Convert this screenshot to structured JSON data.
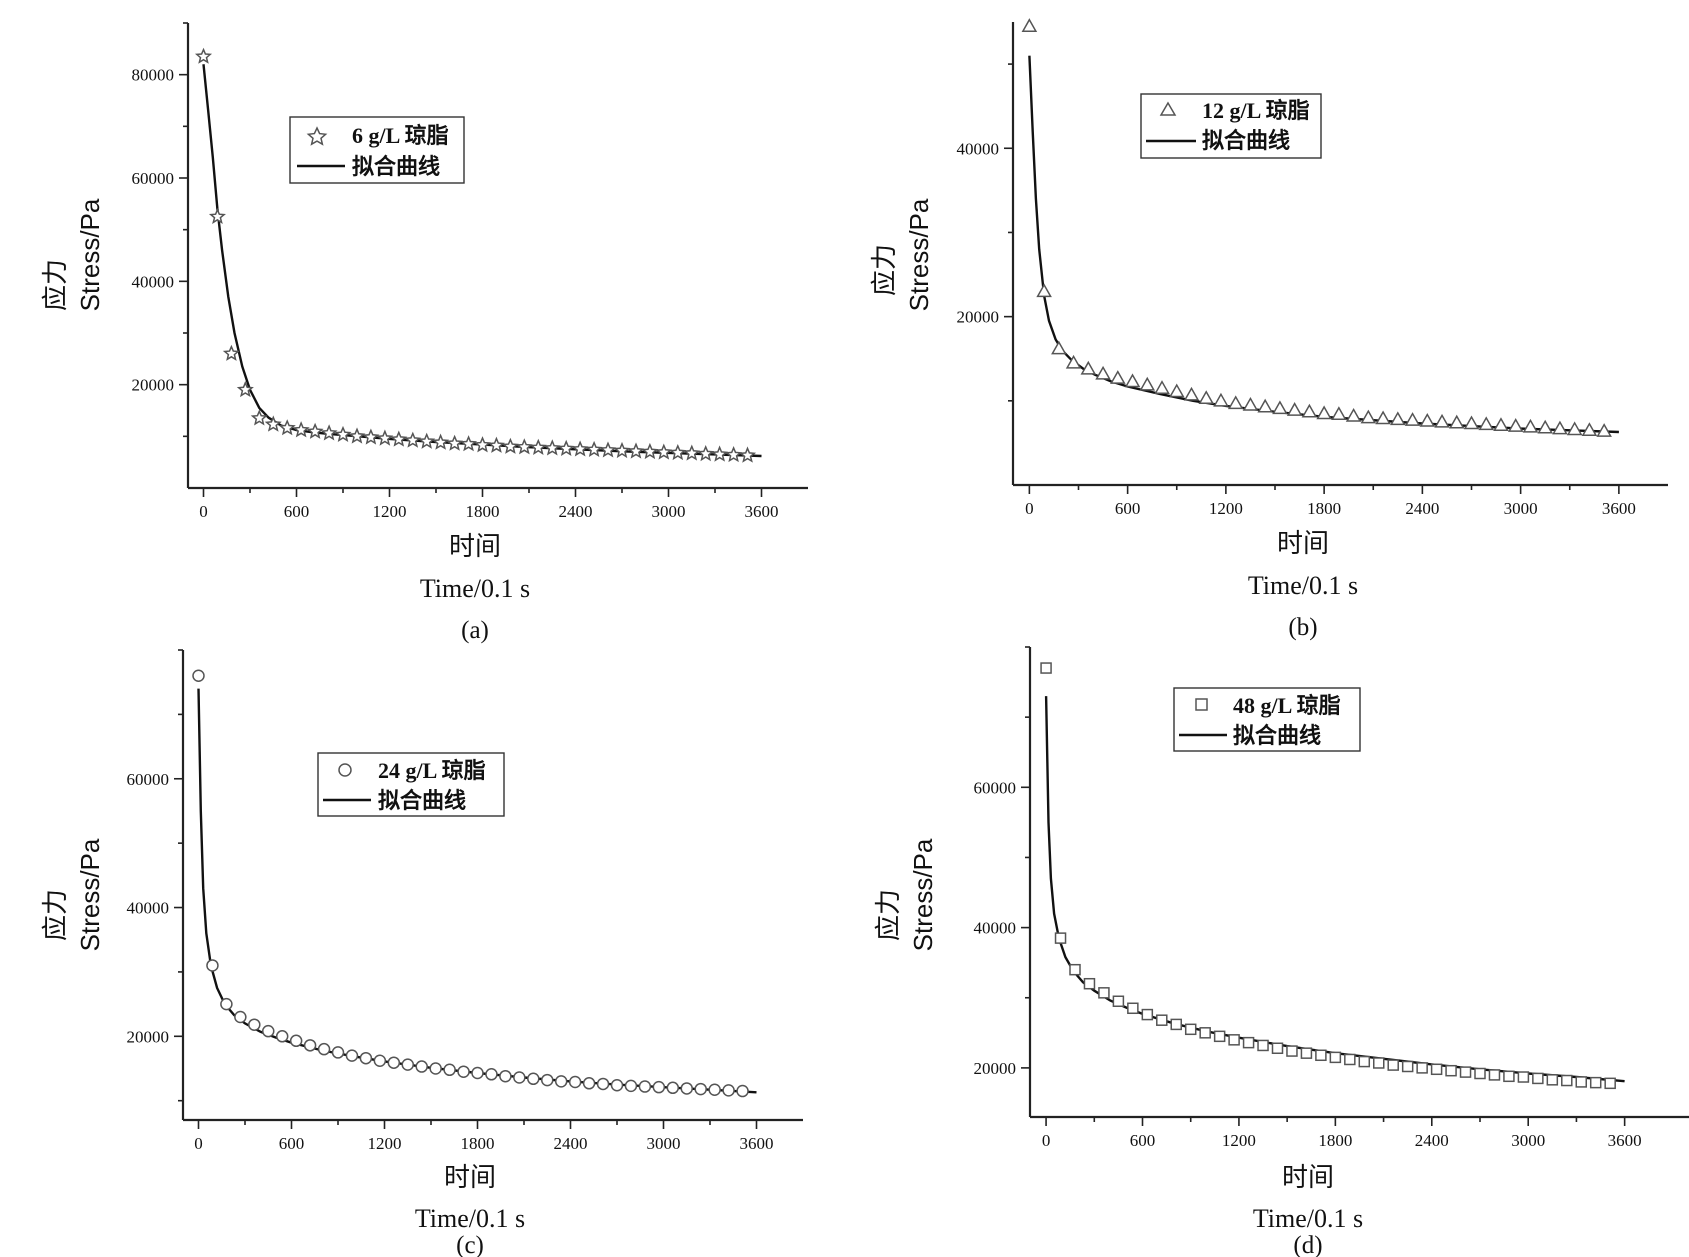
{
  "chart_data": [
    {
      "type": "scatter",
      "panel_label": "(a)",
      "xlabel_cn": "时间",
      "xlabel": "Time/0.1 s",
      "ylabel_cn": "应力",
      "ylabel": "Stress/Pa",
      "xlim": [
        -100,
        3900
      ],
      "ylim": [
        0,
        90000
      ],
      "xticks": [
        0,
        600,
        1200,
        1800,
        2400,
        3000,
        3600
      ],
      "yticks": [
        20000,
        40000,
        60000,
        80000
      ],
      "marker": "star",
      "series": [
        {
          "name": "6 g/L 琼脂",
          "kind": "markers",
          "x": [
            0,
            90,
            180,
            270,
            360,
            450,
            540,
            630,
            720,
            810,
            900,
            990,
            1080,
            1170,
            1260,
            1350,
            1440,
            1530,
            1620,
            1710,
            1800,
            1890,
            1980,
            2070,
            2160,
            2250,
            2340,
            2430,
            2520,
            2610,
            2700,
            2790,
            2880,
            2970,
            3060,
            3150,
            3240,
            3330,
            3420,
            3510
          ],
          "y": [
            83500,
            52500,
            26000,
            19000,
            13500,
            12300,
            11600,
            11200,
            10900,
            10600,
            10300,
            10000,
            9800,
            9600,
            9400,
            9200,
            9000,
            8800,
            8600,
            8500,
            8300,
            8200,
            8000,
            7900,
            7800,
            7700,
            7600,
            7500,
            7400,
            7300,
            7200,
            7100,
            7000,
            6900,
            6800,
            6700,
            6600,
            6500,
            6400,
            6300
          ]
        },
        {
          "name": "拟合曲线",
          "kind": "line",
          "x": [
            0,
            30,
            60,
            90,
            120,
            160,
            200,
            250,
            300,
            360,
            420,
            500,
            600,
            700,
            800,
            1000,
            1200,
            1500,
            1800,
            2100,
            2400,
            2700,
            3000,
            3300,
            3600
          ],
          "y": [
            82000,
            73000,
            64000,
            54000,
            46000,
            37000,
            30000,
            23500,
            19000,
            15500,
            13600,
            12100,
            11200,
            10800,
            10500,
            10000,
            9500,
            8900,
            8400,
            7900,
            7500,
            7100,
            6800,
            6500,
            6200
          ]
        }
      ]
    },
    {
      "type": "scatter",
      "panel_label": "(b)",
      "xlabel_cn": "时间",
      "xlabel": "Time/0.1 s",
      "ylabel_cn": "应力",
      "ylabel": "Stress/Pa",
      "xlim": [
        -100,
        3900
      ],
      "ylim": [
        0,
        55000
      ],
      "xticks": [
        0,
        600,
        1200,
        1800,
        2400,
        3000,
        3600
      ],
      "yticks": [
        20000,
        40000
      ],
      "marker": "triangle",
      "series": [
        {
          "name": "12 g/L 琼脂",
          "kind": "markers",
          "x": [
            0,
            90,
            180,
            270,
            360,
            450,
            540,
            630,
            720,
            810,
            900,
            990,
            1080,
            1170,
            1260,
            1350,
            1440,
            1530,
            1620,
            1710,
            1800,
            1890,
            1980,
            2070,
            2160,
            2250,
            2340,
            2430,
            2520,
            2610,
            2700,
            2790,
            2880,
            2970,
            3060,
            3150,
            3240,
            3330,
            3420,
            3510
          ],
          "y": [
            54500,
            23000,
            16200,
            14500,
            13800,
            13200,
            12700,
            12300,
            11900,
            11500,
            11100,
            10700,
            10300,
            10000,
            9700,
            9500,
            9300,
            9100,
            8900,
            8700,
            8500,
            8400,
            8200,
            8000,
            7900,
            7800,
            7700,
            7600,
            7500,
            7400,
            7300,
            7200,
            7100,
            7000,
            6900,
            6800,
            6700,
            6600,
            6500,
            6400
          ]
        },
        {
          "name": "拟合曲线",
          "kind": "line",
          "x": [
            0,
            20,
            40,
            60,
            90,
            120,
            160,
            200,
            260,
            330,
            400,
            500,
            600,
            800,
            1000,
            1200,
            1500,
            1800,
            2100,
            2400,
            2700,
            3000,
            3300,
            3600
          ],
          "y": [
            51000,
            42000,
            34000,
            28000,
            22500,
            19500,
            17300,
            16000,
            14800,
            13800,
            13100,
            12300,
            11700,
            10800,
            10000,
            9400,
            8700,
            8100,
            7700,
            7300,
            7000,
            6700,
            6500,
            6300
          ]
        }
      ]
    },
    {
      "type": "scatter",
      "panel_label": "(c)",
      "xlabel_cn": "时间",
      "xlabel": "Time/0.1 s",
      "ylabel_cn": "应力",
      "ylabel": "Stress/Pa",
      "xlim": [
        -100,
        3900
      ],
      "ylim": [
        7000,
        80000
      ],
      "xticks": [
        0,
        600,
        1200,
        1800,
        2400,
        3000,
        3600
      ],
      "yticks": [
        20000,
        40000,
        60000
      ],
      "marker": "circle",
      "series": [
        {
          "name": "24 g/L 琼脂",
          "kind": "markers",
          "x": [
            0,
            90,
            180,
            270,
            360,
            450,
            540,
            630,
            720,
            810,
            900,
            990,
            1080,
            1170,
            1260,
            1350,
            1440,
            1530,
            1620,
            1710,
            1800,
            1890,
            1980,
            2070,
            2160,
            2250,
            2340,
            2430,
            2520,
            2610,
            2700,
            2790,
            2880,
            2970,
            3060,
            3150,
            3240,
            3330,
            3420,
            3510
          ],
          "y": [
            76000,
            31000,
            25000,
            23000,
            21800,
            20800,
            20000,
            19300,
            18600,
            18000,
            17500,
            17000,
            16600,
            16200,
            15900,
            15600,
            15300,
            15000,
            14800,
            14500,
            14300,
            14100,
            13800,
            13600,
            13400,
            13200,
            13000,
            12900,
            12700,
            12600,
            12400,
            12300,
            12200,
            12100,
            12000,
            11900,
            11800,
            11700,
            11600,
            11500
          ]
        },
        {
          "name": "拟合曲线",
          "kind": "line",
          "x": [
            0,
            15,
            30,
            50,
            80,
            120,
            170,
            230,
            300,
            400,
            500,
            600,
            800,
            1000,
            1200,
            1500,
            1800,
            2100,
            2400,
            2700,
            3000,
            3300,
            3600
          ],
          "y": [
            74000,
            55000,
            43000,
            36000,
            31000,
            27500,
            25000,
            23300,
            22000,
            20700,
            19800,
            19000,
            17800,
            16900,
            16100,
            15100,
            14300,
            13600,
            13000,
            12500,
            12100,
            11700,
            11300
          ]
        }
      ]
    },
    {
      "type": "scatter",
      "panel_label": "(d)",
      "xlabel_cn": "时间",
      "xlabel": "Time/0.1 s",
      "ylabel_cn": "应力",
      "ylabel": "Stress/Pa",
      "xlim": [
        -100,
        4100
      ],
      "ylim": [
        13000,
        80000
      ],
      "xticks": [
        0,
        600,
        1200,
        1800,
        2400,
        3000,
        3600
      ],
      "yticks": [
        20000,
        40000,
        60000
      ],
      "marker": "square",
      "series": [
        {
          "name": "48 g/L 琼脂",
          "kind": "markers",
          "x": [
            0,
            90,
            180,
            270,
            360,
            450,
            540,
            630,
            720,
            810,
            900,
            990,
            1080,
            1170,
            1260,
            1350,
            1440,
            1530,
            1620,
            1710,
            1800,
            1890,
            1980,
            2070,
            2160,
            2250,
            2340,
            2430,
            2520,
            2610,
            2700,
            2790,
            2880,
            2970,
            3060,
            3150,
            3240,
            3330,
            3420,
            3510
          ],
          "y": [
            77000,
            38500,
            34000,
            32000,
            30700,
            29500,
            28500,
            27600,
            26800,
            26200,
            25500,
            25000,
            24500,
            24000,
            23600,
            23200,
            22800,
            22400,
            22100,
            21800,
            21500,
            21200,
            20900,
            20700,
            20400,
            20200,
            20000,
            19800,
            19600,
            19400,
            19200,
            19000,
            18800,
            18700,
            18500,
            18300,
            18200,
            18000,
            17900,
            17800
          ]
        },
        {
          "name": "拟合曲线",
          "kind": "line",
          "x": [
            0,
            15,
            30,
            50,
            80,
            120,
            170,
            230,
            300,
            400,
            500,
            600,
            800,
            1000,
            1200,
            1500,
            1800,
            2100,
            2400,
            2700,
            3000,
            3300,
            3600
          ],
          "y": [
            73000,
            55000,
            47000,
            42000,
            38500,
            35800,
            33800,
            32200,
            31000,
            29600,
            28600,
            27700,
            26300,
            25200,
            24300,
            23100,
            22100,
            21300,
            20500,
            19800,
            19200,
            18700,
            18100
          ]
        }
      ]
    }
  ]
}
